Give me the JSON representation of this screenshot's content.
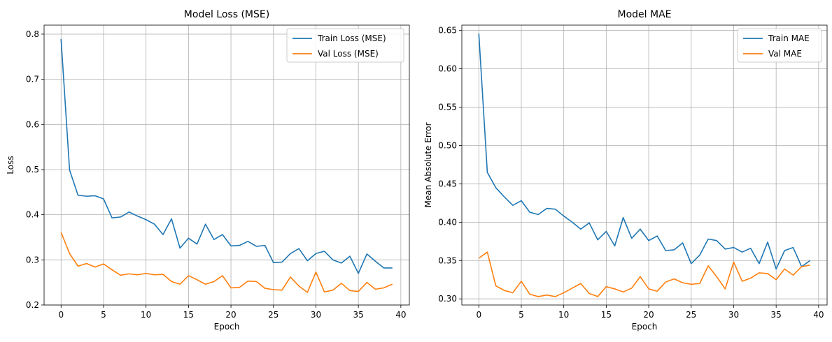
{
  "chart_data": [
    {
      "type": "line",
      "title": "Model Loss (MSE)",
      "xlabel": "Epoch",
      "ylabel": "Loss",
      "xlim": [
        -2,
        41
      ],
      "ylim": [
        0.2,
        0.82
      ],
      "xticks": [
        0,
        5,
        10,
        15,
        20,
        25,
        30,
        35,
        40
      ],
      "yticks": [
        0.2,
        0.3,
        0.4,
        0.5,
        0.6,
        0.7,
        0.8
      ],
      "ytick_labels": [
        "0.2",
        "0.3",
        "0.4",
        "0.5",
        "0.6",
        "0.7",
        "0.8"
      ],
      "grid": true,
      "legend": "top-right",
      "x": [
        0,
        1,
        2,
        3,
        4,
        5,
        6,
        7,
        8,
        9,
        10,
        11,
        12,
        13,
        14,
        15,
        16,
        17,
        18,
        19,
        20,
        21,
        22,
        23,
        24,
        25,
        26,
        27,
        28,
        29,
        30,
        31,
        32,
        33,
        34,
        35,
        36,
        37,
        38,
        39
      ],
      "series": [
        {
          "name": "Train Loss (MSE)",
          "color": "#1f77b4",
          "values": [
            0.789,
            0.499,
            0.443,
            0.441,
            0.442,
            0.435,
            0.393,
            0.395,
            0.406,
            0.397,
            0.389,
            0.379,
            0.356,
            0.391,
            0.326,
            0.348,
            0.335,
            0.379,
            0.345,
            0.356,
            0.331,
            0.332,
            0.341,
            0.33,
            0.332,
            0.294,
            0.295,
            0.314,
            0.325,
            0.298,
            0.314,
            0.319,
            0.3,
            0.293,
            0.308,
            0.27,
            0.313,
            0.297,
            0.282,
            0.282
          ]
        },
        {
          "name": "Val Loss (MSE)",
          "color": "#ff7f0e",
          "values": [
            0.361,
            0.314,
            0.286,
            0.292,
            0.284,
            0.291,
            0.278,
            0.266,
            0.269,
            0.267,
            0.27,
            0.267,
            0.268,
            0.252,
            0.246,
            0.265,
            0.256,
            0.246,
            0.252,
            0.265,
            0.238,
            0.239,
            0.253,
            0.252,
            0.237,
            0.234,
            0.233,
            0.262,
            0.242,
            0.228,
            0.273,
            0.229,
            0.233,
            0.248,
            0.232,
            0.23,
            0.25,
            0.235,
            0.238,
            0.246
          ]
        }
      ]
    },
    {
      "type": "line",
      "title": "Model MAE",
      "xlabel": "Epoch",
      "ylabel": "Mean Absolute Error",
      "xlim": [
        -2,
        41
      ],
      "ylim": [
        0.292,
        0.657
      ],
      "xticks": [
        0,
        5,
        10,
        15,
        20,
        25,
        30,
        35,
        40
      ],
      "yticks": [
        0.3,
        0.35,
        0.4,
        0.45,
        0.5,
        0.55,
        0.6,
        0.65
      ],
      "ytick_labels": [
        "0.30",
        "0.35",
        "0.40",
        "0.45",
        "0.50",
        "0.55",
        "0.60",
        "0.65"
      ],
      "grid": true,
      "legend": "top-right",
      "x": [
        0,
        1,
        2,
        3,
        4,
        5,
        6,
        7,
        8,
        9,
        10,
        11,
        12,
        13,
        14,
        15,
        16,
        17,
        18,
        19,
        20,
        21,
        22,
        23,
        24,
        25,
        26,
        27,
        28,
        29,
        30,
        31,
        32,
        33,
        34,
        35,
        36,
        37,
        38,
        39
      ],
      "series": [
        {
          "name": "Train MAE",
          "color": "#1f77b4",
          "values": [
            0.646,
            0.465,
            0.445,
            0.433,
            0.422,
            0.428,
            0.413,
            0.41,
            0.418,
            0.417,
            0.408,
            0.4,
            0.391,
            0.399,
            0.377,
            0.388,
            0.369,
            0.406,
            0.379,
            0.391,
            0.376,
            0.382,
            0.363,
            0.364,
            0.373,
            0.346,
            0.357,
            0.378,
            0.376,
            0.365,
            0.367,
            0.361,
            0.366,
            0.346,
            0.374,
            0.339,
            0.363,
            0.367,
            0.342,
            0.35
          ]
        },
        {
          "name": "Val MAE",
          "color": "#ff7f0e",
          "values": [
            0.353,
            0.361,
            0.317,
            0.311,
            0.308,
            0.323,
            0.306,
            0.303,
            0.305,
            0.303,
            0.308,
            0.314,
            0.32,
            0.307,
            0.303,
            0.316,
            0.313,
            0.309,
            0.314,
            0.329,
            0.313,
            0.31,
            0.322,
            0.326,
            0.321,
            0.319,
            0.32,
            0.343,
            0.329,
            0.313,
            0.348,
            0.323,
            0.327,
            0.334,
            0.333,
            0.325,
            0.339,
            0.331,
            0.342,
            0.344
          ]
        }
      ]
    }
  ]
}
